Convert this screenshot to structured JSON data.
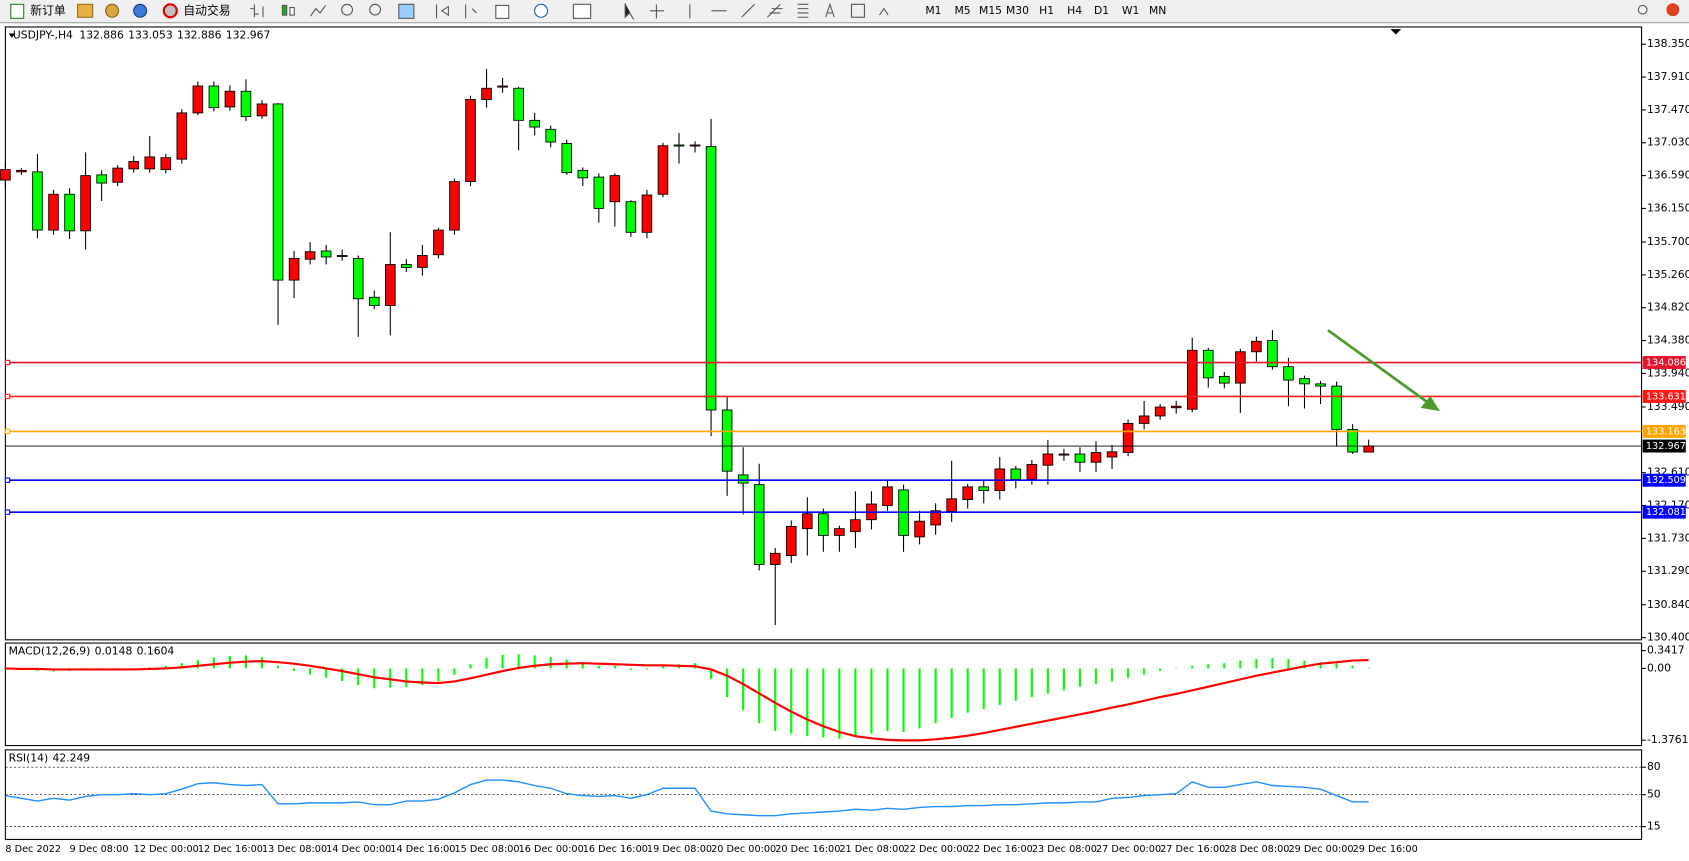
{
  "toolbar": {
    "new_order": "新订单",
    "auto_trade": "自动交易",
    "timeframes": [
      "M1",
      "M5",
      "M15",
      "M30",
      "H1",
      "H4",
      "D1",
      "W1",
      "MN"
    ]
  },
  "chart_data": [
    {
      "type": "candlestick",
      "title": "USDJPY-,H4",
      "categories": [
        "8 Dec 2022",
        null,
        null,
        null,
        "9 Dec 08:00",
        null,
        null,
        null,
        "12 Dec 00:00",
        null,
        null,
        null,
        "12 Dec 16:00",
        null,
        null,
        null,
        "13 Dec 08:00",
        null,
        null,
        null,
        "14 Dec 00:00",
        null,
        null,
        null,
        "14 Dec 16:00",
        null,
        null,
        null,
        "15 Dec 08:00",
        null,
        null,
        null,
        "16 Dec 00:00",
        null,
        null,
        null,
        "16 Dec 16:00",
        null,
        null,
        null,
        "19 Dec 08:00",
        null,
        null,
        null,
        "20 Dec 00:00",
        null,
        null,
        null,
        "20 Dec 16:00",
        null,
        null,
        null,
        "21 Dec 08:00",
        null,
        null,
        null,
        "22 Dec 00:00",
        null,
        null,
        null,
        "22 Dec 16:00",
        null,
        null,
        null,
        "23 Dec 08:00",
        null,
        null,
        null,
        "27 Dec 00:00",
        null,
        null,
        null,
        "27 Dec 16:00",
        null,
        null,
        null,
        "28 Dec 08:00",
        null,
        null,
        null,
        "29 Dec 00:00",
        null,
        null,
        null,
        "29 Dec 16:00",
        null
      ],
      "open": [
        136.53,
        136.64,
        136.64,
        135.86,
        136.34,
        135.85,
        136.6,
        136.5,
        136.68,
        136.68,
        136.67,
        136.81,
        137.43,
        137.79,
        137.51,
        137.72,
        137.39,
        137.55,
        135.19,
        135.47,
        135.58,
        135.52,
        135.48,
        134.96,
        134.85,
        135.4,
        135.36,
        135.53,
        135.86,
        136.51,
        137.61,
        137.78,
        137.76,
        137.33,
        137.21,
        137.02,
        136.66,
        136.57,
        136.24,
        136.24,
        135.83,
        136.34,
        137.0,
        136.99,
        136.98,
        133.45,
        132.58,
        132.45,
        131.38,
        131.5,
        131.86,
        132.06,
        131.77,
        131.82,
        131.98,
        132.17,
        132.38,
        131.75,
        131.91,
        132.09,
        132.25,
        132.42,
        132.37,
        132.66,
        132.52,
        132.71,
        132.85,
        132.86,
        132.75,
        132.82,
        132.88,
        133.27,
        133.37,
        133.48,
        133.46,
        134.25,
        133.9,
        133.81,
        134.23,
        134.38,
        134.03,
        133.87,
        133.8,
        133.77,
        133.19,
        132.886
      ],
      "high": [
        136.77,
        136.69,
        136.88,
        136.4,
        136.42,
        136.9,
        136.66,
        136.73,
        136.85,
        137.12,
        136.88,
        137.48,
        137.85,
        137.85,
        137.8,
        137.88,
        137.6,
        137.56,
        135.58,
        135.7,
        135.66,
        135.6,
        135.52,
        135.05,
        135.83,
        135.47,
        135.66,
        135.89,
        136.55,
        137.66,
        138.02,
        137.9,
        137.78,
        137.43,
        137.26,
        137.07,
        136.7,
        136.62,
        136.62,
        136.26,
        136.4,
        137.03,
        137.16,
        137.05,
        137.35,
        133.64,
        132.95,
        132.73,
        131.6,
        131.97,
        132.28,
        132.13,
        131.9,
        132.36,
        132.36,
        132.5,
        132.45,
        132.1,
        132.2,
        132.77,
        132.46,
        132.5,
        132.82,
        132.7,
        132.78,
        133.05,
        132.93,
        132.95,
        133.03,
        132.98,
        133.32,
        133.57,
        133.53,
        133.57,
        134.42,
        134.28,
        133.96,
        134.27,
        134.43,
        134.52,
        134.15,
        133.91,
        133.84,
        133.83,
        133.26,
        133.053
      ],
      "low": [
        136.41,
        136.6,
        135.75,
        135.8,
        135.74,
        135.6,
        136.25,
        136.45,
        136.63,
        136.63,
        136.62,
        136.75,
        137.4,
        137.45,
        137.46,
        137.32,
        137.35,
        134.59,
        134.95,
        135.4,
        135.4,
        135.45,
        134.43,
        134.8,
        134.45,
        135.3,
        135.25,
        135.48,
        135.8,
        136.45,
        137.5,
        137.7,
        136.93,
        137.13,
        136.97,
        136.6,
        136.45,
        135.96,
        135.91,
        135.77,
        135.75,
        136.3,
        136.75,
        136.9,
        133.1,
        132.3,
        132.05,
        131.3,
        130.57,
        131.4,
        131.5,
        131.55,
        131.55,
        131.6,
        131.85,
        132.1,
        131.55,
        131.65,
        131.78,
        131.95,
        132.13,
        132.2,
        132.25,
        132.4,
        132.45,
        132.45,
        132.77,
        132.62,
        132.62,
        132.66,
        132.83,
        133.19,
        133.32,
        133.4,
        133.42,
        133.75,
        133.74,
        133.41,
        134.1,
        133.99,
        133.5,
        133.47,
        133.53,
        132.96,
        132.86,
        132.886
      ],
      "close": [
        136.67,
        136.66,
        135.86,
        136.34,
        135.85,
        136.59,
        136.49,
        136.69,
        136.78,
        136.84,
        136.83,
        137.43,
        137.79,
        137.5,
        137.72,
        137.38,
        137.55,
        135.19,
        135.48,
        135.57,
        135.5,
        135.51,
        134.94,
        134.85,
        135.4,
        135.36,
        135.52,
        135.86,
        136.51,
        137.61,
        137.76,
        137.79,
        137.33,
        137.24,
        137.04,
        136.63,
        136.56,
        136.15,
        136.59,
        135.83,
        136.33,
        136.99,
        136.99,
        137.0,
        133.45,
        132.63,
        132.47,
        131.38,
        131.53,
        131.89,
        132.06,
        131.77,
        131.86,
        131.98,
        132.19,
        132.42,
        131.77,
        131.96,
        132.1,
        132.26,
        132.42,
        132.37,
        132.66,
        132.52,
        132.72,
        132.86,
        132.86,
        132.75,
        132.88,
        132.89,
        133.27,
        133.37,
        133.49,
        133.5,
        134.25,
        133.88,
        133.81,
        134.23,
        134.37,
        134.03,
        133.85,
        133.8,
        133.77,
        133.19,
        132.886,
        132.967
      ],
      "up_color": "#ff0000",
      "down_color": "#00ff00",
      "ylim": [
        130.371,
        138.581
      ],
      "yticks": [
        {
          "value": 138.35,
          "label": "138.350"
        },
        {
          "value": 137.91,
          "label": "137.910"
        },
        {
          "value": 137.47,
          "label": "137.470"
        },
        {
          "value": 137.03,
          "label": "137.030"
        },
        {
          "value": 136.59,
          "label": "136.590"
        },
        {
          "value": 136.15,
          "label": "136.150"
        },
        {
          "value": 135.7,
          "label": "135.700"
        },
        {
          "value": 135.26,
          "label": "135.260"
        },
        {
          "value": 134.82,
          "label": "134.820"
        },
        {
          "value": 134.38,
          "label": "134.380"
        },
        {
          "value": 133.94,
          "label": "133.940"
        },
        {
          "value": 133.49,
          "label": "133.490"
        },
        {
          "value": 132.61,
          "label": "132.610"
        },
        {
          "value": 132.17,
          "label": "132.170"
        },
        {
          "value": 131.73,
          "label": "131.730"
        },
        {
          "value": 131.29,
          "label": "131.290"
        },
        {
          "value": 130.84,
          "label": "130.840"
        },
        {
          "value": 130.4,
          "label": "130.400"
        }
      ],
      "levels": [
        {
          "value": 134.086,
          "color": "#e8132b"
        },
        {
          "value": 133.631,
          "color": "#ff1a1a"
        },
        {
          "value": 133.163,
          "color": "#ffa500"
        },
        {
          "value": 132.509,
          "color": "#0000ff"
        },
        {
          "value": 132.081,
          "color": "#0000ff"
        }
      ],
      "grid": false
    },
    {
      "type": "bar",
      "title": "MACD(12,26,9)",
      "values": [
        -0.02,
        -0.03,
        -0.05,
        -0.06,
        -0.05,
        -0.04,
        -0.02,
        -0.01,
        0.0,
        0.02,
        0.05,
        0.1,
        0.16,
        0.21,
        0.24,
        0.25,
        0.22,
        0.05,
        -0.05,
        -0.12,
        -0.18,
        -0.24,
        -0.32,
        -0.38,
        -0.37,
        -0.36,
        -0.32,
        -0.25,
        -0.12,
        0.08,
        0.2,
        0.26,
        0.27,
        0.25,
        0.22,
        0.17,
        0.12,
        0.05,
        0.05,
        -0.03,
        -0.02,
        0.05,
        0.08,
        0.1,
        -0.2,
        -0.55,
        -0.8,
        -1.05,
        -1.2,
        -1.25,
        -1.3,
        -1.32,
        -1.35,
        -1.3,
        -1.25,
        -1.2,
        -1.22,
        -1.15,
        -1.05,
        -0.95,
        -0.85,
        -0.78,
        -0.7,
        -0.62,
        -0.55,
        -0.48,
        -0.42,
        -0.35,
        -0.3,
        -0.25,
        -0.18,
        -0.12,
        -0.05,
        0.0,
        0.05,
        0.08,
        0.1,
        0.15,
        0.18,
        0.2,
        0.18,
        0.15,
        0.12,
        0.1,
        0.05,
        0.0148
      ],
      "color": "#00ff00",
      "signal": [
        0.0,
        -0.01,
        -0.01,
        -0.02,
        -0.02,
        -0.02,
        -0.02,
        -0.02,
        -0.02,
        -0.01,
        0.0,
        0.02,
        0.05,
        0.08,
        0.11,
        0.13,
        0.14,
        0.12,
        0.09,
        0.05,
        0.0,
        -0.05,
        -0.11,
        -0.17,
        -0.21,
        -0.25,
        -0.27,
        -0.28,
        -0.25,
        -0.19,
        -0.12,
        -0.05,
        0.01,
        0.05,
        0.08,
        0.09,
        0.1,
        0.09,
        0.08,
        0.07,
        0.06,
        0.06,
        0.05,
        0.04,
        -0.02,
        -0.14,
        -0.3,
        -0.48,
        -0.66,
        -0.83,
        -0.98,
        -1.11,
        -1.22,
        -1.3,
        -1.34,
        -1.37,
        -1.38,
        -1.38,
        -1.36,
        -1.33,
        -1.29,
        -1.24,
        -1.18,
        -1.12,
        -1.06,
        -1.0,
        -0.94,
        -0.88,
        -0.82,
        -0.75,
        -0.69,
        -0.62,
        -0.55,
        -0.49,
        -0.42,
        -0.35,
        -0.28,
        -0.21,
        -0.14,
        -0.08,
        -0.02,
        0.04,
        0.09,
        0.12,
        0.15,
        0.1604
      ],
      "signal_color": "#ff0000",
      "ylim": [
        -1.4796,
        0.4866
      ],
      "yticks": [
        0.3417,
        {
          "value": 0,
          "label": "0.00"
        },
        -1.3761
      ]
    },
    {
      "type": "line",
      "title": "RSI(14)",
      "values": [
        49,
        46,
        43,
        46,
        44,
        48,
        50,
        50,
        51,
        50,
        51,
        56,
        62,
        63,
        61,
        60,
        61,
        40,
        40,
        41,
        41,
        41,
        42,
        39,
        39,
        43,
        43,
        45,
        52,
        61,
        66,
        66,
        64,
        60,
        57,
        51,
        49,
        48,
        49,
        46,
        50,
        57,
        57,
        57,
        32,
        29,
        28,
        27,
        27,
        29,
        30,
        31,
        32,
        34,
        33,
        35,
        34,
        36,
        37,
        37,
        38,
        38,
        39,
        39,
        40,
        41,
        41,
        42,
        42,
        46,
        47,
        49,
        50,
        51,
        64,
        58,
        58,
        61,
        64,
        60,
        59,
        58,
        56,
        49,
        42,
        42.249
      ],
      "color": "#1e90ff",
      "ylim": [
        1,
        99
      ],
      "yticks": [
        80,
        50,
        15
      ]
    }
  ]
}
